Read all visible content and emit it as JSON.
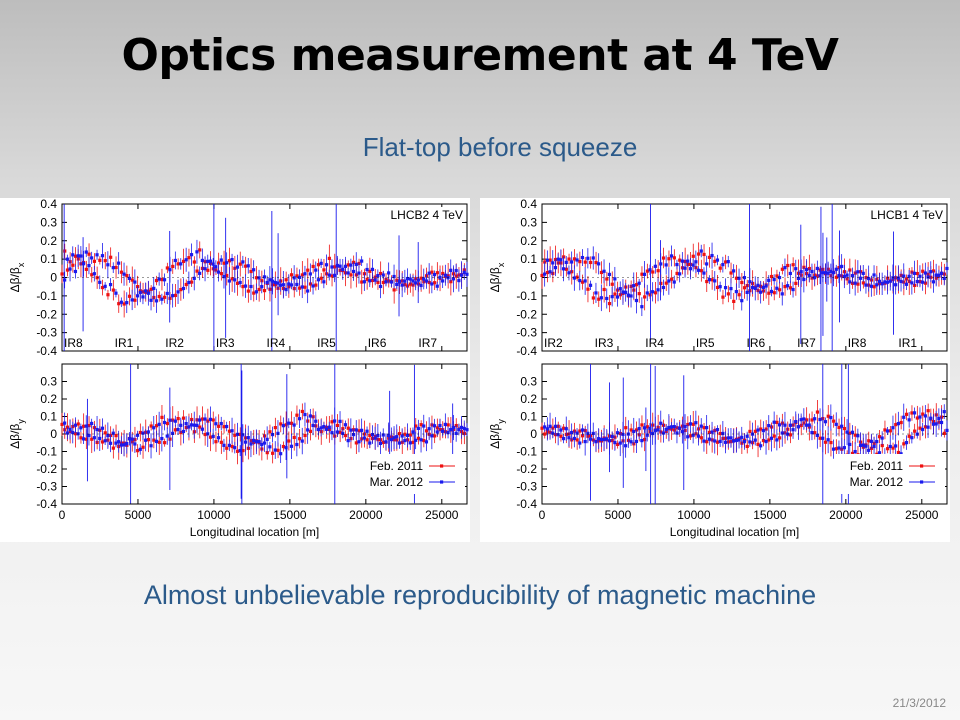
{
  "slide": {
    "title": "Optics measurement at 4 TeV",
    "subtitle": "Flat-top before squeeze",
    "caption": "Almost unbelievable reproducibility of magnetic machine",
    "date": "21/3/2012"
  },
  "chart_data": [
    {
      "type": "scatter",
      "beam_label": "LHCB2  4 TeV",
      "xlabel": "Longitudinal location [m]",
      "xlim": [
        0,
        26659
      ],
      "xticks": [
        0,
        5000,
        10000,
        15000,
        20000,
        25000
      ],
      "ir_labels": [
        {
          "label": "IR8",
          "x": 0
        },
        {
          "label": "IR1",
          "x": 3332
        },
        {
          "label": "IR2",
          "x": 6664
        },
        {
          "label": "IR3",
          "x": 9997
        },
        {
          "label": "IR4",
          "x": 13329
        },
        {
          "label": "IR5",
          "x": 16661
        },
        {
          "label": "IR6",
          "x": 19993
        },
        {
          "label": "IR7",
          "x": 23326
        }
      ],
      "top": {
        "ylabel": "Δβ/β_x",
        "ylim": [
          -0.4,
          0.4
        ],
        "yticks": [
          -0.4,
          -0.3,
          -0.2,
          -0.1,
          0,
          0.1,
          0.2,
          0.3,
          0.4
        ]
      },
      "bottom": {
        "ylabel": "Δβ/β_y",
        "ylim": [
          -0.4,
          0.4
        ],
        "yticks": [
          -0.4,
          -0.3,
          -0.2,
          -0.1,
          0,
          0.1,
          0.2,
          0.3
        ]
      },
      "series": [
        {
          "name": "Feb. 2011",
          "color": "#ee1111"
        },
        {
          "name": "Mar. 2012",
          "color": "#1a1aee"
        }
      ],
      "beat_amplitude_x": [
        0.15,
        0.15,
        0.14,
        0.09,
        0.07,
        0.09,
        0.05,
        0.04
      ],
      "beat_amplitude_y": [
        0.06,
        0.08,
        0.09,
        0.09,
        0.12,
        0.06,
        0.04,
        0.05
      ]
    },
    {
      "type": "scatter",
      "beam_label": "LHCB1  4 TeV",
      "xlabel": "Longitudinal location [m]",
      "xlim": [
        0,
        26659
      ],
      "xticks": [
        0,
        5000,
        10000,
        15000,
        20000,
        25000
      ],
      "ir_labels": [
        {
          "label": "IR2",
          "x": 0
        },
        {
          "label": "IR3",
          "x": 3332
        },
        {
          "label": "IR4",
          "x": 6664
        },
        {
          "label": "IR5",
          "x": 9997
        },
        {
          "label": "IR6",
          "x": 13329
        },
        {
          "label": "IR7",
          "x": 16661
        },
        {
          "label": "IR8",
          "x": 19993
        },
        {
          "label": "IR1",
          "x": 23326
        }
      ],
      "top": {
        "ylabel": "Δβ/β_x",
        "ylim": [
          -0.4,
          0.4
        ],
        "yticks": [
          -0.4,
          -0.3,
          -0.2,
          -0.1,
          0,
          0.1,
          0.2,
          0.3,
          0.4
        ]
      },
      "bottom": {
        "ylabel": "Δβ/β_y",
        "ylim": [
          -0.4,
          0.4
        ],
        "yticks": [
          -0.4,
          -0.3,
          -0.2,
          -0.1,
          0,
          0.1,
          0.2,
          0.3
        ]
      },
      "series": [
        {
          "name": "Feb. 2011",
          "color": "#ee1111"
        },
        {
          "name": "Mar. 2012",
          "color": "#1a1aee"
        }
      ],
      "beat_amplitude_x": [
        0.12,
        0.14,
        0.12,
        0.14,
        0.09,
        0.05,
        0.04,
        0.04
      ],
      "beat_amplitude_y": [
        0.04,
        0.06,
        0.05,
        0.06,
        0.07,
        0.11,
        0.12,
        0.14
      ]
    }
  ]
}
